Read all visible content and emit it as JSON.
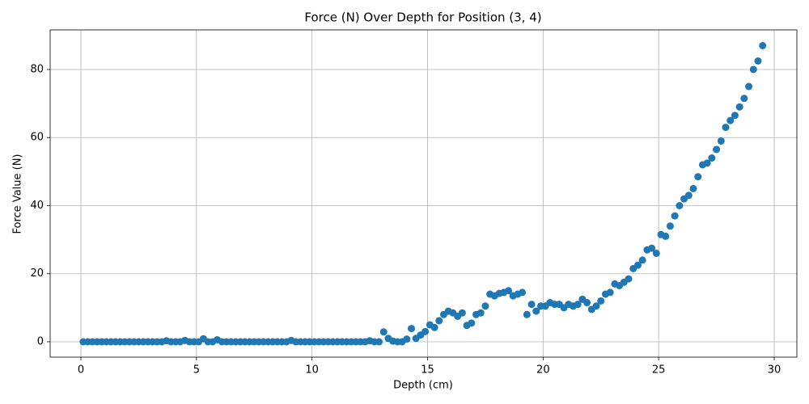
{
  "chart_data": {
    "type": "scatter",
    "title": "Force (N) Over Depth for Position (3, 4)",
    "x_label": "Depth (cm)",
    "y_label": "Force Value (N)",
    "color": "#1f77b4",
    "grid": true,
    "xlim": [
      -1.33,
      30.98
    ],
    "ylim": [
      -4.51,
      91.63
    ],
    "xticks": [
      0,
      5,
      10,
      15,
      20,
      25,
      30
    ],
    "yticks": [
      0,
      20,
      40,
      60,
      80
    ],
    "x": [
      0.1,
      0.3,
      0.5,
      0.7,
      0.9,
      1.1,
      1.3,
      1.5,
      1.7,
      1.9,
      2.1,
      2.3,
      2.5,
      2.7,
      2.9,
      3.1,
      3.3,
      3.5,
      3.7,
      3.9,
      4.1,
      4.3,
      4.5,
      4.7,
      4.9,
      5.1,
      5.3,
      5.5,
      5.7,
      5.9,
      6.1,
      6.3,
      6.5,
      6.7,
      6.9,
      7.1,
      7.3,
      7.5,
      7.7,
      7.9,
      8.1,
      8.3,
      8.5,
      8.7,
      8.9,
      9.1,
      9.3,
      9.5,
      9.7,
      9.9,
      10.1,
      10.3,
      10.5,
      10.7,
      10.9,
      11.1,
      11.3,
      11.5,
      11.7,
      11.9,
      12.1,
      12.3,
      12.5,
      12.7,
      12.9,
      13.1,
      13.3,
      13.5,
      13.7,
      13.9,
      14.1,
      14.3,
      14.5,
      14.7,
      14.9,
      15.1,
      15.3,
      15.5,
      15.7,
      15.9,
      16.1,
      16.3,
      16.5,
      16.7,
      16.9,
      17.1,
      17.3,
      17.5,
      17.7,
      17.9,
      18.1,
      18.3,
      18.5,
      18.7,
      18.9,
      19.1,
      19.3,
      19.5,
      19.7,
      19.9,
      20.1,
      20.3,
      20.5,
      20.7,
      20.9,
      21.1,
      21.3,
      21.5,
      21.7,
      21.9,
      22.1,
      22.3,
      22.5,
      22.7,
      22.9,
      23.1,
      23.3,
      23.5,
      23.7,
      23.9,
      24.1,
      24.3,
      24.5,
      24.7,
      24.9,
      25.1,
      25.3,
      25.5,
      25.7,
      25.9,
      26.1,
      26.3,
      26.5,
      26.7,
      26.9,
      27.1,
      27.3,
      27.5,
      27.7,
      27.9,
      28.1,
      28.3,
      28.5,
      28.7,
      28.9,
      29.1,
      29.3,
      29.5
    ],
    "values": [
      0,
      0,
      0,
      0,
      0,
      0,
      0,
      0,
      0,
      0,
      0,
      0,
      0,
      0,
      0,
      0,
      0,
      0,
      0.3,
      0,
      0,
      0,
      0.4,
      0,
      0,
      0,
      0.9,
      0,
      0,
      0.6,
      0,
      0,
      0,
      0,
      0,
      0,
      0,
      0,
      0,
      0,
      0,
      0,
      0,
      0,
      0,
      0.4,
      0,
      0,
      0,
      0,
      0,
      0,
      0,
      0,
      0,
      0,
      0,
      0,
      0,
      0,
      0,
      0,
      0.3,
      0,
      0,
      2.9,
      1.0,
      0.2,
      0,
      0,
      0.8,
      3.9,
      1.0,
      2.0,
      3.0,
      5.0,
      4.2,
      6.2,
      8.0,
      9.0,
      8.5,
      7.5,
      8.5,
      4.8,
      5.5,
      8.0,
      8.5,
      10.5,
      14.0,
      13.5,
      14.2,
      14.5,
      15.0,
      13.5,
      14.0,
      14.5,
      8.0,
      11.0,
      9.0,
      10.5,
      10.5,
      11.5,
      11.0,
      11.0,
      10.0,
      11.0,
      10.5,
      11.0,
      12.5,
      11.5,
      9.5,
      10.5,
      12.0,
      14.0,
      14.5,
      17.0,
      16.5,
      17.5,
      18.5,
      21.5,
      22.5,
      24.0,
      27.0,
      27.5,
      26.0,
      31.5,
      31.0,
      34.0,
      37.0,
      40.0,
      42.0,
      43.0,
      45.0,
      48.5,
      52.0,
      52.5,
      54.0,
      56.5,
      59.0,
      63.0,
      65.0,
      66.5,
      69.0,
      71.5,
      75.0,
      80.0,
      82.5,
      87.0
    ]
  }
}
